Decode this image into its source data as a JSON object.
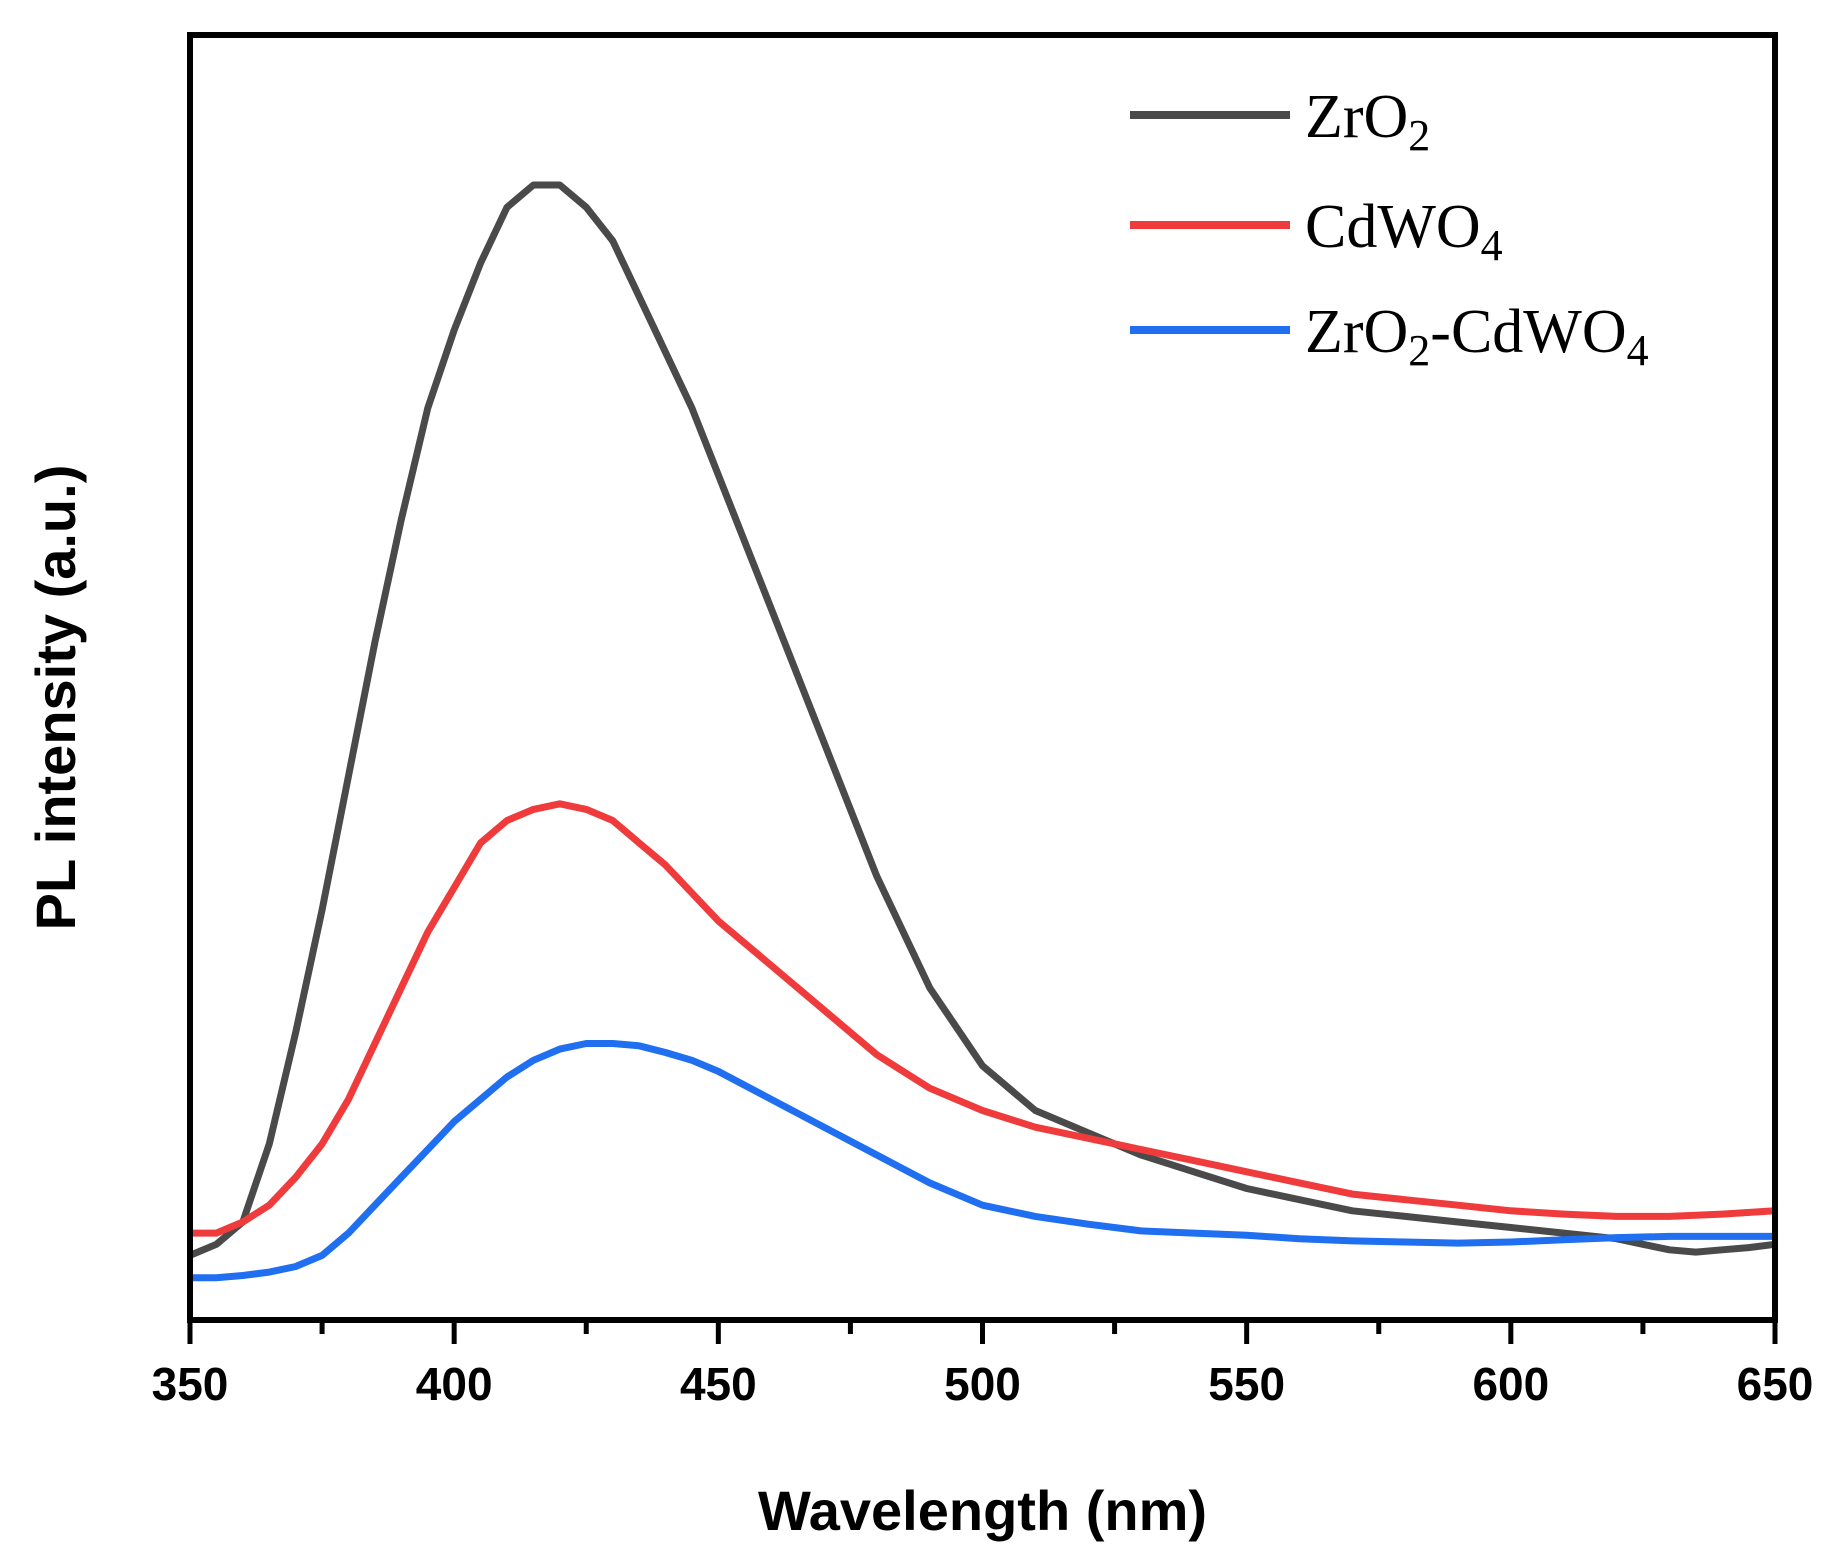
{
  "chart_data": {
    "type": "line",
    "title": "",
    "xlabel": "Wavelength (nm)",
    "ylabel": "PL intensity (a.u.)",
    "xlim": [
      350,
      650
    ],
    "ylim": [
      0,
      1
    ],
    "x_ticks": [
      "350",
      "400",
      "450",
      "500",
      "550",
      "600",
      "650"
    ],
    "y_ticks_labeled": false,
    "grid": false,
    "legend_position": "top-right",
    "series": [
      {
        "name": "ZrO2",
        "label_base": "ZrO",
        "label_sub": "2",
        "color": "#4a4a4a",
        "x": [
          350,
          355,
          360,
          365,
          370,
          375,
          380,
          385,
          390,
          395,
          400,
          405,
          410,
          415,
          420,
          425,
          430,
          435,
          440,
          445,
          450,
          460,
          470,
          480,
          490,
          500,
          510,
          520,
          530,
          540,
          550,
          560,
          570,
          580,
          590,
          600,
          610,
          620,
          625,
          630,
          635,
          640,
          645,
          650
        ],
        "y": [
          0.04,
          0.05,
          0.07,
          0.14,
          0.24,
          0.35,
          0.47,
          0.59,
          0.7,
          0.8,
          0.87,
          0.93,
          0.98,
          1.0,
          1.0,
          0.98,
          0.95,
          0.9,
          0.85,
          0.8,
          0.74,
          0.62,
          0.5,
          0.38,
          0.28,
          0.21,
          0.17,
          0.15,
          0.13,
          0.115,
          0.1,
          0.09,
          0.08,
          0.075,
          0.07,
          0.065,
          0.06,
          0.055,
          0.05,
          0.045,
          0.043,
          0.045,
          0.047,
          0.05
        ]
      },
      {
        "name": "CdWO4",
        "label_base": "CdWO",
        "label_sub": "4",
        "color": "#ef3b3b",
        "x": [
          350,
          355,
          360,
          365,
          370,
          375,
          380,
          385,
          390,
          395,
          400,
          405,
          410,
          415,
          420,
          425,
          430,
          435,
          440,
          445,
          450,
          460,
          470,
          480,
          490,
          500,
          510,
          520,
          530,
          540,
          550,
          560,
          570,
          580,
          590,
          600,
          610,
          620,
          630,
          640,
          650
        ],
        "y": [
          0.06,
          0.06,
          0.07,
          0.085,
          0.11,
          0.14,
          0.18,
          0.23,
          0.28,
          0.33,
          0.37,
          0.41,
          0.43,
          0.44,
          0.445,
          0.44,
          0.43,
          0.41,
          0.39,
          0.365,
          0.34,
          0.3,
          0.26,
          0.22,
          0.19,
          0.17,
          0.155,
          0.145,
          0.135,
          0.125,
          0.115,
          0.105,
          0.095,
          0.09,
          0.085,
          0.08,
          0.077,
          0.075,
          0.075,
          0.077,
          0.08
        ]
      },
      {
        "name": "ZrO2-CdWO4",
        "label_base": "ZrO",
        "label_sub": "2",
        "label_mid": "-CdWO",
        "label_sub2": "4",
        "color": "#1f6ff0",
        "x": [
          350,
          355,
          360,
          365,
          370,
          375,
          380,
          385,
          390,
          395,
          400,
          405,
          410,
          415,
          420,
          425,
          430,
          435,
          440,
          445,
          450,
          460,
          470,
          480,
          490,
          500,
          510,
          520,
          530,
          540,
          550,
          560,
          570,
          580,
          590,
          600,
          610,
          620,
          630,
          640,
          650
        ],
        "y": [
          0.02,
          0.02,
          0.022,
          0.025,
          0.03,
          0.04,
          0.06,
          0.085,
          0.11,
          0.135,
          0.16,
          0.18,
          0.2,
          0.215,
          0.225,
          0.23,
          0.23,
          0.228,
          0.222,
          0.215,
          0.205,
          0.18,
          0.155,
          0.13,
          0.105,
          0.085,
          0.075,
          0.068,
          0.062,
          0.06,
          0.058,
          0.055,
          0.053,
          0.052,
          0.051,
          0.052,
          0.054,
          0.056,
          0.057,
          0.057,
          0.057
        ]
      }
    ]
  }
}
